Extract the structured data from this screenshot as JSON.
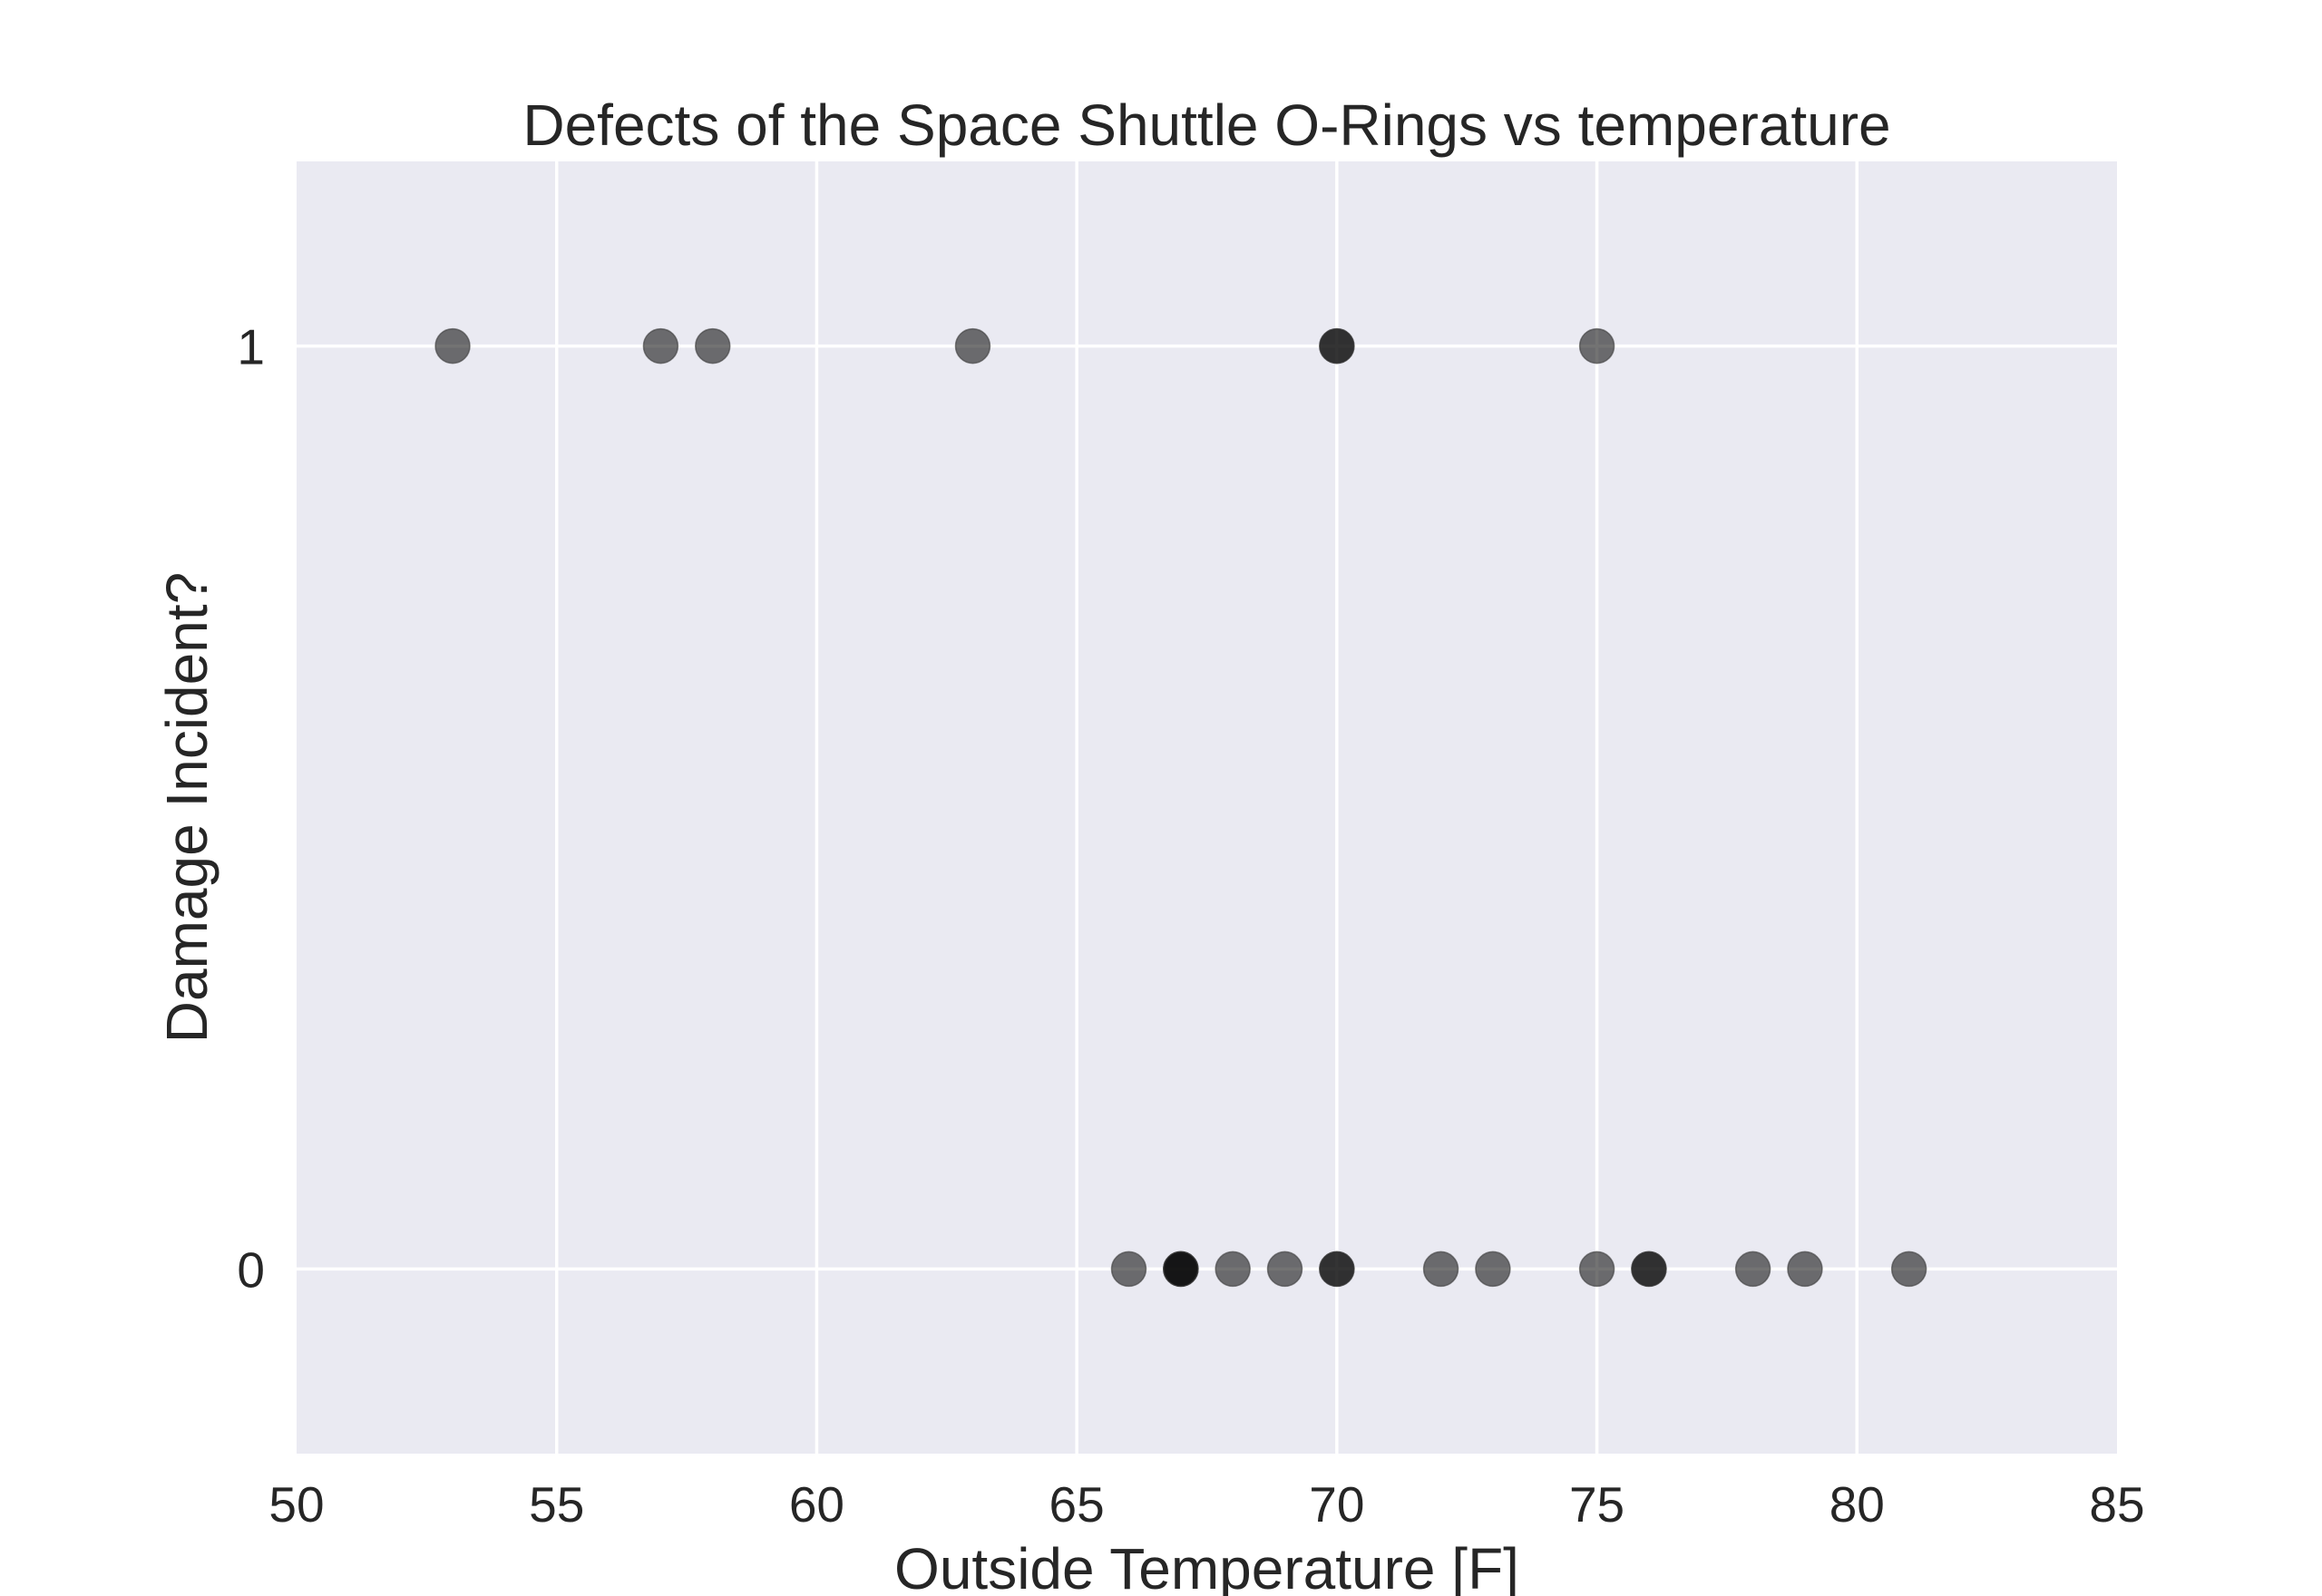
{
  "chart_data": {
    "type": "scatter",
    "title": "Defects of the Space Shuttle O-Rings vs temperature",
    "xlabel": "Outside Temperature [F]",
    "ylabel": "Damage Incident?",
    "xlim": [
      50,
      85
    ],
    "ylim": [
      -0.2,
      1.2
    ],
    "xticks": [
      50,
      55,
      60,
      65,
      70,
      75,
      80,
      85
    ],
    "xtick_labels": [
      "50",
      "55",
      "60",
      "65",
      "70",
      "75",
      "80",
      "85"
    ],
    "yticks": [
      0,
      1
    ],
    "ytick_labels": [
      "0",
      "1"
    ],
    "grid": true,
    "legend": "none",
    "colors": {
      "plot_background": "#eaeaf2",
      "grid": "#ffffff",
      "marker": "#000000",
      "text": "#262626"
    },
    "points": [
      {
        "x": 53,
        "y": 1
      },
      {
        "x": 57,
        "y": 1
      },
      {
        "x": 58,
        "y": 1
      },
      {
        "x": 63,
        "y": 1
      },
      {
        "x": 70,
        "y": 1
      },
      {
        "x": 70,
        "y": 1
      },
      {
        "x": 75,
        "y": 1
      },
      {
        "x": 66,
        "y": 0
      },
      {
        "x": 67,
        "y": 0
      },
      {
        "x": 67,
        "y": 0
      },
      {
        "x": 67,
        "y": 0
      },
      {
        "x": 68,
        "y": 0
      },
      {
        "x": 69,
        "y": 0
      },
      {
        "x": 70,
        "y": 0
      },
      {
        "x": 70,
        "y": 0
      },
      {
        "x": 72,
        "y": 0
      },
      {
        "x": 73,
        "y": 0
      },
      {
        "x": 75,
        "y": 0
      },
      {
        "x": 76,
        "y": 0
      },
      {
        "x": 76,
        "y": 0
      },
      {
        "x": 78,
        "y": 0
      },
      {
        "x": 79,
        "y": 0
      },
      {
        "x": 81,
        "y": 0
      }
    ]
  }
}
